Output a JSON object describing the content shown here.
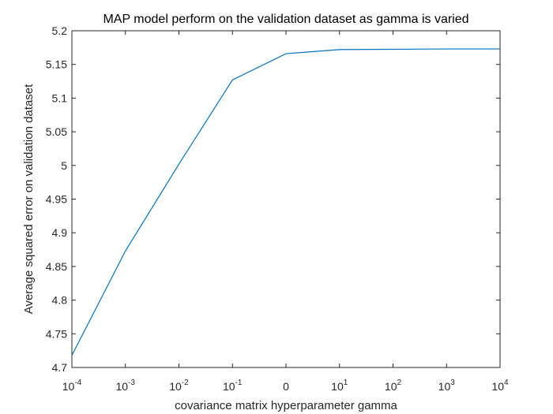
{
  "chart_data": {
    "type": "line",
    "title": "MAP model perform on the validation dataset as gamma is varied",
    "xlabel": "covariance matrix hyperparameter gamma",
    "ylabel": "Average squared error on validation dataset",
    "x_tick_labels": [
      {
        "base": "10",
        "exp": "-4"
      },
      {
        "base": "10",
        "exp": "-3"
      },
      {
        "base": "10",
        "exp": "-2"
      },
      {
        "base": "10",
        "exp": "-1"
      },
      {
        "base": "0",
        "exp": ""
      },
      {
        "base": "10",
        "exp": "1"
      },
      {
        "base": "10",
        "exp": "2"
      },
      {
        "base": "10",
        "exp": "3"
      },
      {
        "base": "10",
        "exp": "4"
      }
    ],
    "y_ticks": [
      "4.7",
      "4.75",
      "4.8",
      "4.85",
      "4.9",
      "4.95",
      "5",
      "5.05",
      "5.1",
      "5.15",
      "5.2"
    ],
    "ylim": [
      4.7,
      5.2
    ],
    "grid": false,
    "series": [
      {
        "x": [
          0,
          1,
          2,
          3,
          4,
          5,
          6,
          7,
          8
        ],
        "values": [
          4.718,
          4.873,
          5.002,
          5.127,
          5.166,
          5.172,
          5.1725,
          5.173,
          5.173
        ],
        "color": "#0072BD"
      }
    ],
    "colors": {
      "line": "#0072BD",
      "axes": "#262626"
    }
  }
}
